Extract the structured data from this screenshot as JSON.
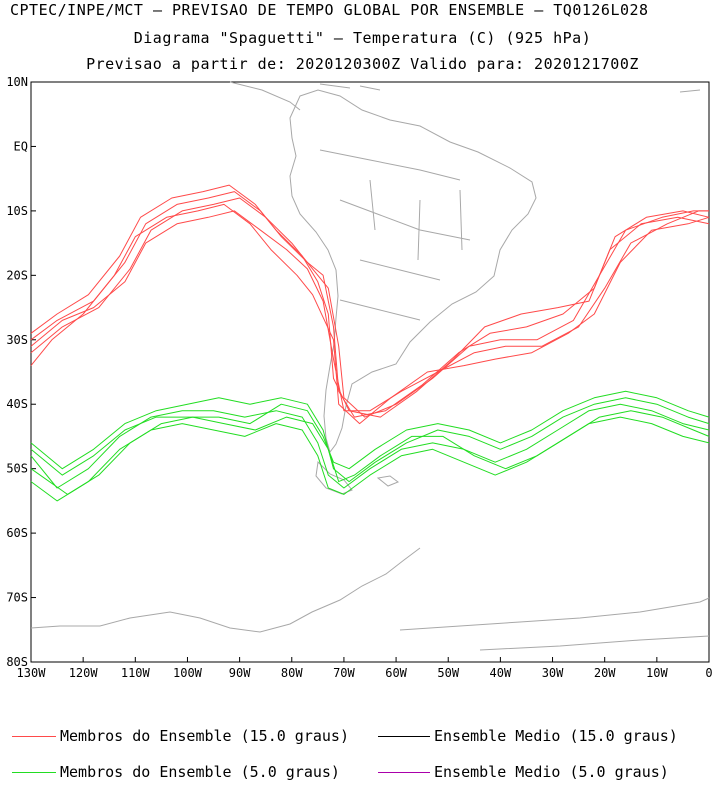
{
  "header": {
    "line1": "CPTEC/INPE/MCT — PREVISAO DE TEMPO GLOBAL POR ENSEMBLE — TQ0126L028",
    "line2": "Diagrama \"Spaguetti\" — Temperatura (C) (925 hPa)",
    "line3": "Previsao a partir de: 2020120300Z  Valido para: 2020121700Z"
  },
  "legend": [
    {
      "label": "Membros do Ensemble (15.0 graus)",
      "color": "#ff4a4a"
    },
    {
      "label": "Ensemble Medio (15.0 graus)",
      "color": "#000000"
    },
    {
      "label": "Membros do Ensemble (5.0 graus)",
      "color": "#22dd22"
    },
    {
      "label": "Ensemble Medio (5.0 graus)",
      "color": "#aa00aa"
    }
  ],
  "chart_data": {
    "type": "line",
    "title": "Diagrama \"Spaguetti\" — Temperatura (C) (925 hPa)",
    "xlim": [
      -130,
      0
    ],
    "ylim": [
      -80,
      10
    ],
    "x_ticks": [
      "130W",
      "120W",
      "110W",
      "100W",
      "90W",
      "80W",
      "70W",
      "60W",
      "50W",
      "40W",
      "30W",
      "20W",
      "10W",
      "0"
    ],
    "y_ticks": [
      "10N",
      "EQ",
      "10S",
      "20S",
      "30S",
      "40S",
      "50S",
      "60S",
      "70S",
      "80S"
    ],
    "series": [
      {
        "name": "Membros do Ensemble (15.0 graus)",
        "color": "#ff4a4a",
        "members": [
          [
            [
              -130,
              -30
            ],
            [
              -125,
              -27
            ],
            [
              -118,
              -24
            ],
            [
              -112,
              -18
            ],
            [
              -108,
              -12
            ],
            [
              -102,
              -9
            ],
            [
              -96,
              -8
            ],
            [
              -91,
              -7
            ],
            [
              -86,
              -10
            ],
            [
              -82,
              -14
            ],
            [
              -77,
              -18
            ],
            [
              -74,
              -20
            ],
            [
              -72,
              -28
            ],
            [
              -71,
              -38
            ],
            [
              -68,
              -42
            ],
            [
              -62,
              -41
            ],
            [
              -55,
              -37
            ],
            [
              -48,
              -32
            ],
            [
              -42,
              -29
            ],
            [
              -35,
              -28
            ],
            [
              -28,
              -26
            ],
            [
              -22,
              -22
            ],
            [
              -18,
              -14
            ],
            [
              -12,
              -11
            ],
            [
              -5,
              -10
            ],
            [
              0,
              -11
            ]
          ],
          [
            [
              -130,
              -32
            ],
            [
              -124,
              -28
            ],
            [
              -117,
              -25
            ],
            [
              -111,
              -19
            ],
            [
              -107,
              -13
            ],
            [
              -101,
              -10
            ],
            [
              -95,
              -9
            ],
            [
              -90,
              -8
            ],
            [
              -85,
              -11
            ],
            [
              -80,
              -15
            ],
            [
              -76,
              -19
            ],
            [
              -73,
              -22
            ],
            [
              -71,
              -31
            ],
            [
              -70,
              -39
            ],
            [
              -66,
              -42
            ],
            [
              -60,
              -40
            ],
            [
              -53,
              -36
            ],
            [
              -46,
              -31
            ],
            [
              -40,
              -30
            ],
            [
              -33,
              -30
            ],
            [
              -26,
              -27
            ],
            [
              -21,
              -20
            ],
            [
              -16,
              -13
            ],
            [
              -9,
              -11
            ],
            [
              -3,
              -10
            ],
            [
              0,
              -10
            ]
          ],
          [
            [
              -130,
              -29
            ],
            [
              -125,
              -26
            ],
            [
              -119,
              -23
            ],
            [
              -113,
              -17
            ],
            [
              -109,
              -11
            ],
            [
              -103,
              -8
            ],
            [
              -97,
              -7
            ],
            [
              -92,
              -6
            ],
            [
              -87,
              -9
            ],
            [
              -83,
              -13
            ],
            [
              -78,
              -17
            ],
            [
              -75,
              -21
            ],
            [
              -73,
              -26
            ],
            [
              -72,
              -36
            ],
            [
              -69,
              -41
            ],
            [
              -63,
              -42
            ],
            [
              -56,
              -38
            ],
            [
              -49,
              -33
            ],
            [
              -43,
              -28
            ],
            [
              -36,
              -26
            ],
            [
              -29,
              -25
            ],
            [
              -23,
              -24
            ],
            [
              -19,
              -16
            ],
            [
              -13,
              -12
            ],
            [
              -6,
              -11
            ],
            [
              0,
              -12
            ]
          ],
          [
            [
              -130,
              -34
            ],
            [
              -126,
              -30
            ],
            [
              -120,
              -26
            ],
            [
              -114,
              -20
            ],
            [
              -110,
              -14
            ],
            [
              -104,
              -11
            ],
            [
              -98,
              -10
            ],
            [
              -93,
              -9
            ],
            [
              -88,
              -12
            ],
            [
              -84,
              -16
            ],
            [
              -79,
              -20
            ],
            [
              -76,
              -23
            ],
            [
              -72,
              -30
            ],
            [
              -71,
              -40
            ],
            [
              -67,
              -43
            ],
            [
              -61,
              -39
            ],
            [
              -54,
              -35
            ],
            [
              -47,
              -34
            ],
            [
              -41,
              -33
            ],
            [
              -34,
              -32
            ],
            [
              -27,
              -29
            ],
            [
              -22,
              -26
            ],
            [
              -17,
              -18
            ],
            [
              -11,
              -13
            ],
            [
              -4,
              -12
            ],
            [
              0,
              -11
            ]
          ],
          [
            [
              -130,
              -31
            ],
            [
              -124,
              -27
            ],
            [
              -118,
              -25
            ],
            [
              -112,
              -21
            ],
            [
              -108,
              -15
            ],
            [
              -102,
              -12
            ],
            [
              -96,
              -11
            ],
            [
              -91,
              -10
            ],
            [
              -86,
              -13
            ],
            [
              -81,
              -16
            ],
            [
              -77,
              -19
            ],
            [
              -74,
              -24
            ],
            [
              -72,
              -33
            ],
            [
              -70,
              -41
            ],
            [
              -65,
              -41
            ],
            [
              -59,
              -38
            ],
            [
              -52,
              -35
            ],
            [
              -45,
              -32
            ],
            [
              -39,
              -31
            ],
            [
              -32,
              -31
            ],
            [
              -25,
              -28
            ],
            [
              -20,
              -22
            ],
            [
              -15,
              -15
            ],
            [
              -8,
              -12
            ],
            [
              -2,
              -10
            ],
            [
              0,
              -10
            ]
          ]
        ]
      },
      {
        "name": "Membros do Ensemble (5.0 graus)",
        "color": "#22dd22",
        "members": [
          [
            [
              -130,
              -46
            ],
            [
              -124,
              -50
            ],
            [
              -118,
              -47
            ],
            [
              -112,
              -43
            ],
            [
              -106,
              -41
            ],
            [
              -100,
              -40
            ],
            [
              -94,
              -39
            ],
            [
              -88,
              -40
            ],
            [
              -82,
              -39
            ],
            [
              -77,
              -40
            ],
            [
              -74,
              -44
            ],
            [
              -72,
              -50
            ],
            [
              -69,
              -52
            ],
            [
              -64,
              -49
            ],
            [
              -58,
              -46
            ],
            [
              -52,
              -44
            ],
            [
              -46,
              -45
            ],
            [
              -40,
              -47
            ],
            [
              -34,
              -45
            ],
            [
              -28,
              -42
            ],
            [
              -22,
              -40
            ],
            [
              -16,
              -39
            ],
            [
              -10,
              -40
            ],
            [
              -4,
              -42
            ],
            [
              0,
              -43
            ]
          ],
          [
            [
              -130,
              -48
            ],
            [
              -125,
              -53
            ],
            [
              -119,
              -50
            ],
            [
              -113,
              -45
            ],
            [
              -107,
              -42
            ],
            [
              -101,
              -41
            ],
            [
              -95,
              -41
            ],
            [
              -89,
              -42
            ],
            [
              -83,
              -41
            ],
            [
              -78,
              -42
            ],
            [
              -75,
              -46
            ],
            [
              -73,
              -51
            ],
            [
              -70,
              -53
            ],
            [
              -65,
              -50
            ],
            [
              -59,
              -47
            ],
            [
              -53,
              -46
            ],
            [
              -47,
              -47
            ],
            [
              -41,
              -49
            ],
            [
              -35,
              -47
            ],
            [
              -29,
              -44
            ],
            [
              -23,
              -41
            ],
            [
              -17,
              -40
            ],
            [
              -11,
              -41
            ],
            [
              -5,
              -43
            ],
            [
              0,
              -44
            ]
          ],
          [
            [
              -130,
              -50
            ],
            [
              -123,
              -54
            ],
            [
              -117,
              -51
            ],
            [
              -111,
              -46
            ],
            [
              -105,
              -43
            ],
            [
              -99,
              -42
            ],
            [
              -93,
              -43
            ],
            [
              -87,
              -44
            ],
            [
              -81,
              -42
            ],
            [
              -76,
              -43
            ],
            [
              -73,
              -47
            ],
            [
              -71,
              -52
            ],
            [
              -68,
              -51
            ],
            [
              -63,
              -48
            ],
            [
              -57,
              -45
            ],
            [
              -51,
              -45
            ],
            [
              -45,
              -48
            ],
            [
              -39,
              -50
            ],
            [
              -33,
              -48
            ],
            [
              -27,
              -45
            ],
            [
              -21,
              -42
            ],
            [
              -15,
              -41
            ],
            [
              -9,
              -42
            ],
            [
              -3,
              -44
            ],
            [
              0,
              -45
            ]
          ],
          [
            [
              -130,
              -47
            ],
            [
              -124,
              -51
            ],
            [
              -118,
              -48
            ],
            [
              -112,
              -44
            ],
            [
              -106,
              -42
            ],
            [
              -100,
              -42
            ],
            [
              -94,
              -42
            ],
            [
              -88,
              -43
            ],
            [
              -82,
              -40
            ],
            [
              -77,
              -41
            ],
            [
              -74,
              -45
            ],
            [
              -72,
              -49
            ],
            [
              -69,
              -50
            ],
            [
              -64,
              -47
            ],
            [
              -58,
              -44
            ],
            [
              -52,
              -43
            ],
            [
              -46,
              -44
            ],
            [
              -40,
              -46
            ],
            [
              -34,
              -44
            ],
            [
              -28,
              -41
            ],
            [
              -22,
              -39
            ],
            [
              -16,
              -38
            ],
            [
              -10,
              -39
            ],
            [
              -4,
              -41
            ],
            [
              0,
              -42
            ]
          ],
          [
            [
              -130,
              -52
            ],
            [
              -125,
              -55
            ],
            [
              -119,
              -52
            ],
            [
              -113,
              -47
            ],
            [
              -107,
              -44
            ],
            [
              -101,
              -43
            ],
            [
              -95,
              -44
            ],
            [
              -89,
              -45
            ],
            [
              -83,
              -43
            ],
            [
              -78,
              -44
            ],
            [
              -75,
              -48
            ],
            [
              -73,
              -53
            ],
            [
              -70,
              -54
            ],
            [
              -65,
              -51
            ],
            [
              -59,
              -48
            ],
            [
              -53,
              -47
            ],
            [
              -47,
              -49
            ],
            [
              -41,
              -51
            ],
            [
              -35,
              -49
            ],
            [
              -29,
              -46
            ],
            [
              -23,
              -43
            ],
            [
              -17,
              -42
            ],
            [
              -11,
              -43
            ],
            [
              -5,
              -45
            ],
            [
              0,
              -46
            ]
          ]
        ]
      }
    ],
    "xlabel": "",
    "ylabel": ""
  }
}
